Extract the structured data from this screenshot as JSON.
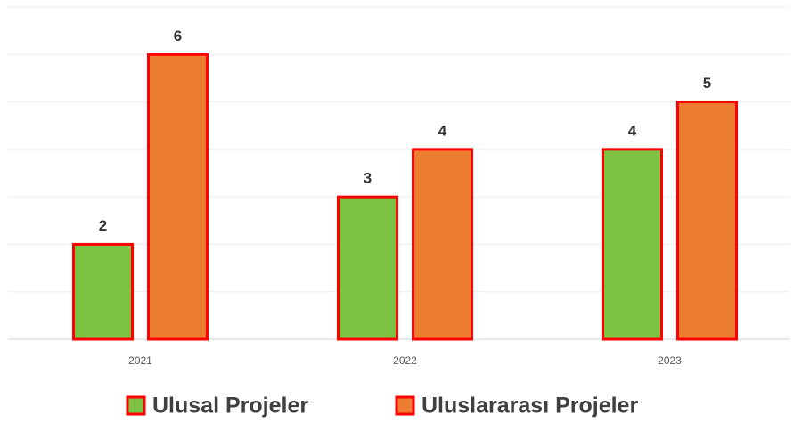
{
  "chart_data": {
    "type": "bar",
    "categories": [
      "2021",
      "2022",
      "2023"
    ],
    "series": [
      {
        "name": "Ulusal Projeler",
        "color": "#7dc243",
        "values": [
          2,
          3,
          4
        ]
      },
      {
        "name": "Uluslararası Projeler",
        "color": "#ed7d31",
        "values": [
          6,
          4,
          5
        ]
      }
    ],
    "bar_edge_color": "#ff0000",
    "ylim": [
      0,
      7
    ],
    "yticks": [
      0,
      1,
      2,
      3,
      4,
      5,
      6,
      7
    ],
    "grid": true,
    "legend": "bottom"
  }
}
